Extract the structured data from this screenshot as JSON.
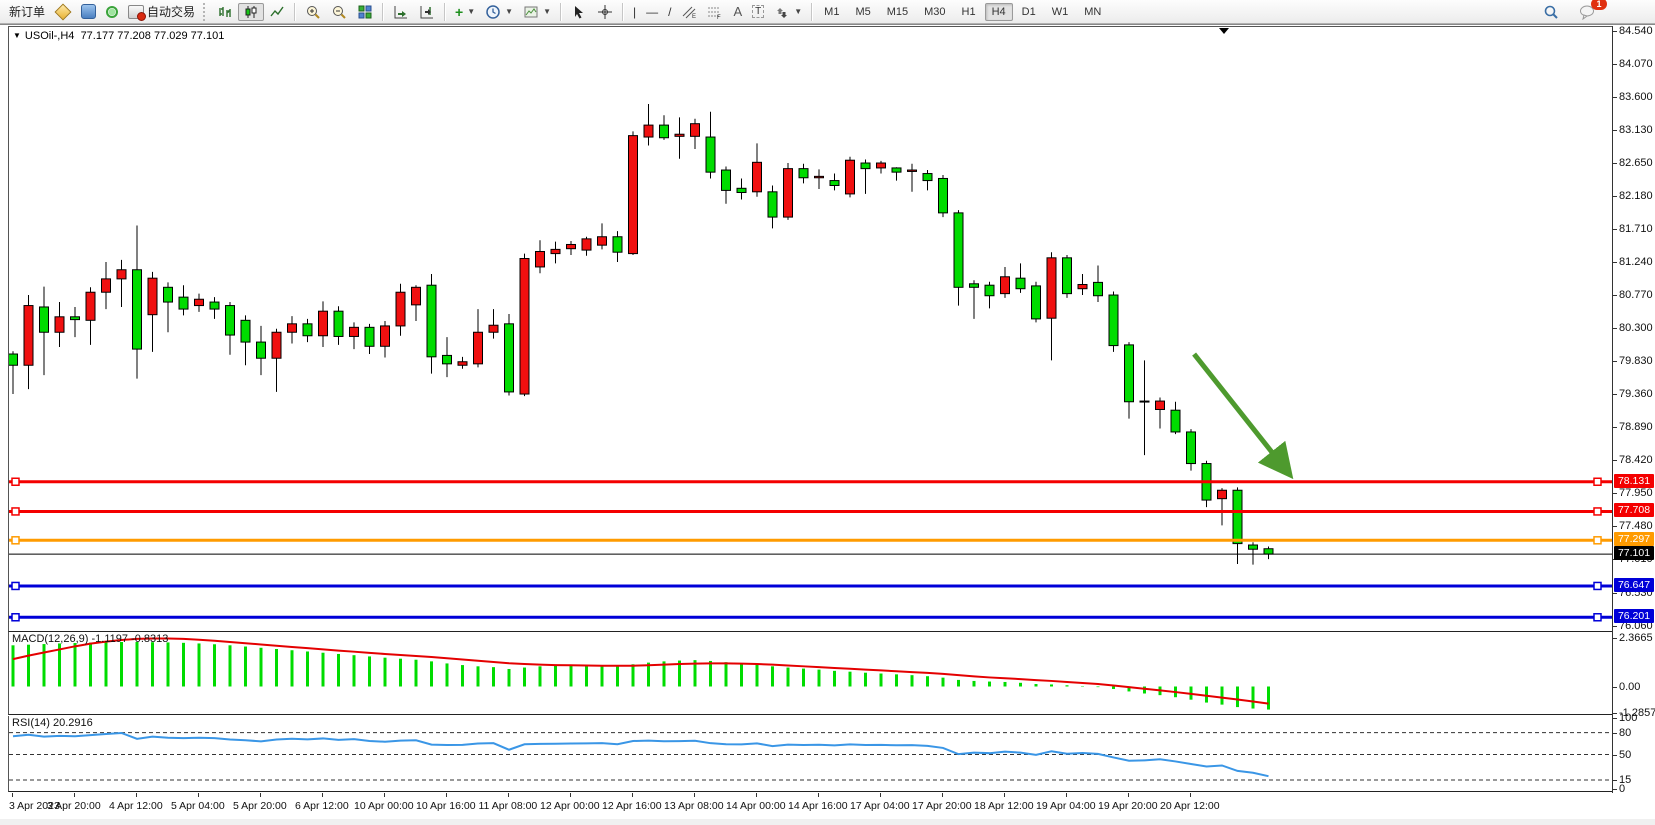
{
  "toolbar": {
    "new_order_label": "新订单",
    "auto_trading_label": "自动交易",
    "timeframes": [
      "M1",
      "M5",
      "M15",
      "M30",
      "H1",
      "H4",
      "D1",
      "W1",
      "MN"
    ],
    "active_timeframe": "H4",
    "chat_badge": "1"
  },
  "chart": {
    "symbol_period": "USOil-,H4",
    "ohlc_text": "77.177 77.208 77.029 77.101"
  },
  "indicators": {
    "macd_label": "MACD(12,26,9)",
    "macd_values": "-1.1197 -0.8313",
    "rsi_label": "RSI(14)",
    "rsi_value": "20.2916"
  },
  "price_axis": {
    "ticks": [
      "84.540",
      "84.070",
      "83.600",
      "83.130",
      "82.650",
      "82.180",
      "81.710",
      "81.240",
      "80.770",
      "80.300",
      "79.830",
      "79.360",
      "78.890",
      "78.420",
      "77.950",
      "77.480",
      "77.010",
      "76.530",
      "76.060"
    ]
  },
  "price_lines": [
    {
      "label": "78.131",
      "price": 78.131,
      "color": "#f40000",
      "width": 3,
      "endpoints": true
    },
    {
      "label": "77.708",
      "price": 77.708,
      "color": "#f40000",
      "width": 3,
      "endpoints": true
    },
    {
      "label": "77.297",
      "price": 77.297,
      "color": "#ff9b00",
      "width": 3,
      "endpoints": true
    },
    {
      "label": "77.101",
      "price": 77.101,
      "color": "#000000",
      "width": 1,
      "endpoints": false
    },
    {
      "label": "76.647",
      "price": 76.647,
      "color": "#0000d8",
      "width": 3,
      "endpoints": true
    },
    {
      "label": "76.201",
      "price": 76.201,
      "color": "#0000d8",
      "width": 3,
      "endpoints": true
    }
  ],
  "annotations": {
    "arrow": {
      "from_bar": 76.2,
      "from_price": 79.95,
      "to_bar": 82.2,
      "to_price": 78.28,
      "color": "#4e9a2e"
    },
    "shift_marker_bar": 78.1
  },
  "chart_data": [
    {
      "type": "candlestick",
      "title": "USOil-,H4",
      "up_color": "#f01010",
      "down_color": "#00dc00",
      "ylim": [
        76.0,
        84.61
      ],
      "x_label_every": 4,
      "x_labels": [
        "3 Apr 2023",
        "3 Apr 20:00",
        "4 Apr 12:00",
        "5 Apr 04:00",
        "5 Apr 20:00",
        "6 Apr 12:00",
        "10 Apr 00:00",
        "10 Apr 16:00",
        "11 Apr 08:00",
        "12 Apr 00:00",
        "12 Apr 16:00",
        "13 Apr 08:00",
        "14 Apr 00:00",
        "14 Apr 16:00",
        "17 Apr 04:00",
        "17 Apr 20:00",
        "18 Apr 12:00",
        "19 Apr 04:00",
        "19 Apr 20:00",
        "20 Apr 12:00"
      ],
      "ohlc": [
        [
          79.95,
          79.99,
          79.38,
          79.79
        ],
        [
          79.79,
          80.79,
          79.45,
          80.64
        ],
        [
          80.62,
          80.91,
          79.65,
          80.26
        ],
        [
          80.26,
          80.69,
          80.05,
          80.48
        ],
        [
          80.48,
          80.62,
          80.19,
          80.44
        ],
        [
          80.43,
          80.9,
          80.08,
          80.83
        ],
        [
          80.83,
          81.26,
          80.59,
          81.02
        ],
        [
          81.02,
          81.29,
          80.62,
          81.15
        ],
        [
          81.15,
          81.78,
          79.6,
          80.02
        ],
        [
          80.51,
          81.12,
          79.98,
          81.03
        ],
        [
          80.9,
          80.97,
          80.26,
          80.69
        ],
        [
          80.76,
          80.93,
          80.5,
          80.59
        ],
        [
          80.64,
          80.81,
          80.55,
          80.73
        ],
        [
          80.69,
          80.76,
          80.45,
          80.59
        ],
        [
          80.64,
          80.69,
          79.94,
          80.22
        ],
        [
          80.43,
          80.5,
          79.79,
          80.12
        ],
        [
          80.12,
          80.35,
          79.65,
          79.89
        ],
        [
          79.89,
          80.31,
          79.41,
          80.26
        ],
        [
          80.26,
          80.49,
          80.1,
          80.38
        ],
        [
          80.38,
          80.45,
          80.12,
          80.21
        ],
        [
          80.21,
          80.7,
          80.05,
          80.56
        ],
        [
          80.56,
          80.63,
          80.08,
          80.2
        ],
        [
          80.2,
          80.4,
          80.02,
          80.33
        ],
        [
          80.33,
          80.38,
          79.95,
          80.06
        ],
        [
          80.06,
          80.42,
          79.9,
          80.35
        ],
        [
          80.35,
          80.95,
          80.21,
          80.83
        ],
        [
          80.65,
          80.93,
          80.42,
          80.9
        ],
        [
          80.93,
          81.09,
          79.67,
          79.91
        ],
        [
          79.93,
          80.19,
          79.62,
          79.81
        ],
        [
          79.79,
          79.91,
          79.74,
          79.84
        ],
        [
          79.81,
          80.59,
          79.76,
          80.26
        ],
        [
          80.26,
          80.59,
          80.17,
          80.36
        ],
        [
          80.38,
          80.52,
          79.36,
          79.41
        ],
        [
          79.38,
          81.38,
          79.35,
          81.31
        ],
        [
          81.19,
          81.57,
          81.1,
          81.41
        ],
        [
          81.38,
          81.55,
          81.24,
          81.44
        ],
        [
          81.45,
          81.56,
          81.36,
          81.51
        ],
        [
          81.43,
          81.62,
          81.35,
          81.59
        ],
        [
          81.5,
          81.81,
          81.44,
          81.62
        ],
        [
          81.62,
          81.7,
          81.26,
          81.4
        ],
        [
          81.38,
          83.12,
          81.36,
          83.06
        ],
        [
          83.04,
          83.51,
          82.92,
          83.21
        ],
        [
          83.21,
          83.35,
          83.0,
          83.03
        ],
        [
          83.05,
          83.32,
          82.73,
          83.08
        ],
        [
          83.05,
          83.3,
          82.87,
          83.23
        ],
        [
          83.04,
          83.4,
          82.45,
          82.54
        ],
        [
          82.57,
          82.62,
          82.09,
          82.28
        ],
        [
          82.31,
          82.45,
          82.15,
          82.25
        ],
        [
          82.26,
          82.95,
          82.19,
          82.68
        ],
        [
          82.26,
          82.35,
          81.74,
          81.9
        ],
        [
          81.9,
          82.67,
          81.86,
          82.59
        ],
        [
          82.59,
          82.66,
          82.38,
          82.46
        ],
        [
          82.46,
          82.58,
          82.3,
          82.48
        ],
        [
          82.42,
          82.52,
          82.28,
          82.35
        ],
        [
          82.23,
          82.76,
          82.18,
          82.71
        ],
        [
          82.67,
          82.72,
          82.23,
          82.59
        ],
        [
          82.6,
          82.7,
          82.52,
          82.67
        ],
        [
          82.6,
          82.61,
          82.42,
          82.54
        ],
        [
          82.55,
          82.66,
          82.26,
          82.57
        ],
        [
          82.52,
          82.57,
          82.28,
          82.42
        ],
        [
          82.45,
          82.5,
          81.9,
          81.96
        ],
        [
          81.96,
          82.0,
          80.64,
          80.9
        ],
        [
          80.95,
          81.0,
          80.45,
          80.9
        ],
        [
          80.93,
          80.98,
          80.6,
          80.78
        ],
        [
          80.81,
          81.19,
          80.75,
          81.05
        ],
        [
          81.03,
          81.24,
          80.82,
          80.88
        ],
        [
          80.92,
          80.98,
          80.4,
          80.45
        ],
        [
          80.46,
          81.4,
          79.86,
          81.32
        ],
        [
          81.32,
          81.36,
          80.75,
          80.81
        ],
        [
          80.88,
          81.09,
          80.79,
          80.94
        ],
        [
          80.97,
          81.21,
          80.69,
          80.78
        ],
        [
          80.79,
          80.84,
          79.98,
          80.07
        ],
        [
          80.08,
          80.12,
          79.03,
          79.27
        ],
        [
          79.28,
          79.86,
          78.51,
          79.27
        ],
        [
          79.16,
          79.33,
          78.89,
          79.28
        ],
        [
          79.15,
          79.27,
          78.81,
          78.84
        ],
        [
          78.84,
          78.88,
          78.29,
          78.39
        ],
        [
          78.39,
          78.43,
          77.77,
          77.87
        ],
        [
          77.89,
          78.04,
          77.51,
          78.01
        ],
        [
          78.01,
          78.05,
          76.96,
          77.25
        ],
        [
          77.23,
          77.27,
          76.95,
          77.17
        ],
        [
          77.177,
          77.208,
          77.029,
          77.101
        ]
      ]
    },
    {
      "type": "bar",
      "name": "MACD(12,26,9)",
      "hist_color": "#00dc00",
      "signal_color": "#e40000",
      "y_labels": [
        "2.3665",
        "0.00",
        "-1.2857"
      ],
      "y_label_values": [
        2.3665,
        0,
        -1.2857
      ],
      "last_values": "-1.1197 -0.8313",
      "hist": [
        2.0,
        2.03,
        2.06,
        2.09,
        2.11,
        2.13,
        2.15,
        2.16,
        2.16,
        2.15,
        2.14,
        2.12,
        2.09,
        2.05,
        2.0,
        1.94,
        1.88,
        1.82,
        1.76,
        1.7,
        1.64,
        1.58,
        1.52,
        1.46,
        1.4,
        1.35,
        1.3,
        1.22,
        1.12,
        1.04,
        0.98,
        0.94,
        0.85,
        0.92,
        0.98,
        1.01,
        1.02,
        1.03,
        1.02,
        1.0,
        1.08,
        1.16,
        1.22,
        1.26,
        1.28,
        1.24,
        1.18,
        1.12,
        1.06,
        0.98,
        0.92,
        0.87,
        0.82,
        0.76,
        0.72,
        0.67,
        0.63,
        0.59,
        0.55,
        0.5,
        0.43,
        0.32,
        0.27,
        0.24,
        0.22,
        0.18,
        0.12,
        0.1,
        0.06,
        0.02,
        -0.03,
        -0.12,
        -0.24,
        -0.34,
        -0.42,
        -0.52,
        -0.64,
        -0.78,
        -0.88,
        -1.0,
        -1.07,
        -1.1197
      ],
      "signal": [
        1.33,
        1.5,
        1.65,
        1.8,
        1.95,
        2.08,
        2.18,
        2.26,
        2.31,
        2.33,
        2.33,
        2.31,
        2.27,
        2.22,
        2.16,
        2.1,
        2.04,
        1.98,
        1.92,
        1.86,
        1.8,
        1.74,
        1.69,
        1.63,
        1.58,
        1.53,
        1.48,
        1.43,
        1.37,
        1.31,
        1.25,
        1.19,
        1.13,
        1.09,
        1.06,
        1.04,
        1.03,
        1.02,
        1.01,
        1.01,
        1.01,
        1.03,
        1.06,
        1.09,
        1.11,
        1.12,
        1.12,
        1.11,
        1.09,
        1.06,
        1.02,
        0.98,
        0.94,
        0.9,
        0.86,
        0.82,
        0.78,
        0.74,
        0.7,
        0.66,
        0.61,
        0.55,
        0.49,
        0.44,
        0.4,
        0.36,
        0.31,
        0.27,
        0.22,
        0.17,
        0.12,
        0.05,
        -0.03,
        -0.11,
        -0.19,
        -0.27,
        -0.36,
        -0.45,
        -0.54,
        -0.63,
        -0.73,
        -0.8313
      ]
    },
    {
      "type": "line",
      "name": "RSI(14)",
      "color": "#3a96e6",
      "last_value": "20.2916",
      "levels": [
        80,
        50,
        15
      ],
      "y_labels": [
        "100",
        "80",
        "50",
        "15",
        "0"
      ],
      "y_label_values": [
        100,
        80,
        50,
        15,
        0
      ],
      "values": [
        75,
        77,
        74.5,
        75.5,
        75,
        76.5,
        78,
        79.5,
        71.5,
        74.5,
        73,
        72.5,
        73,
        72.5,
        70.5,
        69.5,
        68,
        70.5,
        71.5,
        70.8,
        72,
        70,
        71,
        68.5,
        67.5,
        69,
        69.5,
        63.5,
        63,
        63.2,
        65,
        65.5,
        56.5,
        64,
        64.5,
        64.8,
        65,
        65.3,
        65.5,
        64,
        68.5,
        69,
        68.2,
        68.4,
        68.8,
        65.5,
        64,
        63.8,
        65.2,
        61.5,
        63.5,
        63,
        63.3,
        62.5,
        63.8,
        63,
        63.2,
        62.6,
        62.8,
        61.8,
        59,
        50.5,
        52.5,
        51.8,
        54,
        52.5,
        49.5,
        54.5,
        51,
        52,
        50.8,
        46,
        41.5,
        42,
        43.5,
        40.5,
        37,
        33.5,
        35,
        27.5,
        25,
        20.29
      ]
    }
  ]
}
